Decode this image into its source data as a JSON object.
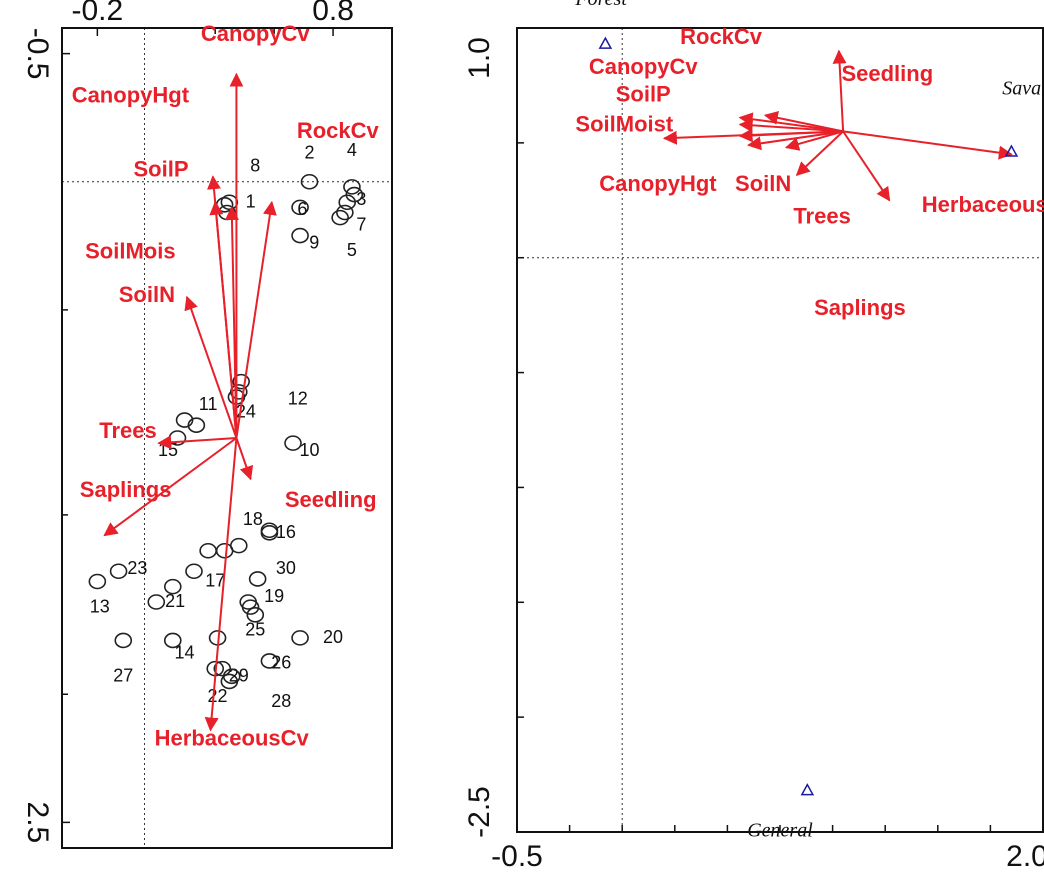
{
  "chart_data": [
    {
      "type": "scatter",
      "title": "",
      "xlabel": "",
      "ylabel": "",
      "x_tick_labels": [
        "-0.2",
        "0.8"
      ],
      "y_tick_labels": [
        "-0.5",
        "2.5"
      ],
      "xlim": [
        -0.35,
        1.05
      ],
      "ylim": [
        -0.6,
        2.6
      ],
      "y_inverted": true,
      "reference_lines": {
        "x": 0,
        "y": 0
      },
      "colors": {
        "arrows": "#e8202a",
        "sites": "#222222"
      },
      "arrows": [
        {
          "label": "CanopyCv",
          "x": 0.39,
          "y": -0.42,
          "label_x": 0.47,
          "label_y": -0.55
        },
        {
          "label": "CanopyHgt",
          "x": 0.29,
          "y": -0.02,
          "label_x": -0.06,
          "label_y": -0.31
        },
        {
          "label": "SoilP",
          "x": 0.3,
          "y": 0.08,
          "label_x": 0.07,
          "label_y": -0.02
        },
        {
          "label": "RockCv",
          "x": 0.54,
          "y": 0.08,
          "label_x": 0.82,
          "label_y": -0.17
        },
        {
          "label": "SoilMois",
          "x": 0.37,
          "y": 0.1,
          "label_x": -0.06,
          "label_y": 0.3
        },
        {
          "label": "SoilN",
          "x": 0.18,
          "y": 0.45,
          "label_x": 0.01,
          "label_y": 0.47
        },
        {
          "label": "Trees",
          "x": 0.06,
          "y": 1.02,
          "label_x": -0.07,
          "label_y": 1.0
        },
        {
          "label": "Saplings",
          "x": -0.17,
          "y": 1.38,
          "label_x": -0.08,
          "label_y": 1.23
        },
        {
          "label": "Seedling",
          "x": 0.45,
          "y": 1.16,
          "label_x": 0.79,
          "label_y": 1.27
        },
        {
          "label": "HerbaceousCv",
          "x": 0.28,
          "y": 2.14,
          "label_x": 0.37,
          "label_y": 2.2
        }
      ],
      "arrow_origin": {
        "x": 0.39,
        "y": 1.0
      },
      "sites": [
        {
          "id": "1",
          "x": 0.34,
          "y": 0.09,
          "label_x": 0.45,
          "label_y": 0.1
        },
        {
          "id": "2",
          "x": 0.7,
          "y": 0.0,
          "label_x": 0.7,
          "label_y": -0.09
        },
        {
          "id": "3",
          "x": 0.86,
          "y": 0.08,
          "label_x": 0.92,
          "label_y": 0.09
        },
        {
          "id": "4",
          "x": 0.88,
          "y": 0.02,
          "label_x": 0.88,
          "label_y": -0.1
        },
        {
          "id": "5",
          "x": 0.85,
          "y": 0.12,
          "label_x": 0.88,
          "label_y": 0.29
        },
        {
          "id": "6",
          "x": 0.66,
          "y": 0.1,
          "label_x": 0.67,
          "label_y": 0.13
        },
        {
          "id": "7",
          "x": 0.83,
          "y": 0.14,
          "label_x": 0.92,
          "label_y": 0.19
        },
        {
          "id": "8",
          "x": 0.36,
          "y": 0.08,
          "label_x": 0.47,
          "label_y": -0.04
        },
        {
          "id": "9",
          "x": 0.66,
          "y": 0.21,
          "label_x": 0.72,
          "label_y": 0.26
        },
        {
          "id": "10",
          "x": 0.63,
          "y": 1.02,
          "label_x": 0.7,
          "label_y": 1.07
        },
        {
          "id": "11",
          "x": 0.17,
          "y": 0.93,
          "label_x": 0.27,
          "label_y": 0.89
        },
        {
          "id": "12",
          "x": 0.41,
          "y": 0.78,
          "label_x": 0.65,
          "label_y": 0.87
        },
        {
          "id": "13",
          "x": -0.2,
          "y": 1.56,
          "label_x": -0.19,
          "label_y": 1.68
        },
        {
          "id": "14",
          "x": 0.31,
          "y": 1.78,
          "label_x": 0.17,
          "label_y": 1.86
        },
        {
          "id": "15",
          "x": 0.14,
          "y": 1.0,
          "label_x": 0.1,
          "label_y": 1.07
        },
        {
          "id": "16",
          "x": 0.53,
          "y": 1.36,
          "label_x": 0.6,
          "label_y": 1.39
        },
        {
          "id": "17",
          "x": 0.27,
          "y": 1.44,
          "label_x": 0.3,
          "label_y": 1.58
        },
        {
          "id": "18",
          "x": 0.4,
          "y": 1.42,
          "label_x": 0.46,
          "label_y": 1.34
        },
        {
          "id": "19",
          "x": 0.44,
          "y": 1.64,
          "label_x": 0.55,
          "label_y": 1.64
        },
        {
          "id": "20",
          "x": 0.66,
          "y": 1.78,
          "label_x": 0.8,
          "label_y": 1.8
        },
        {
          "id": "21",
          "x": 0.05,
          "y": 1.64,
          "label_x": 0.13,
          "label_y": 1.66
        },
        {
          "id": "22",
          "x": 0.3,
          "y": 1.9,
          "label_x": 0.31,
          "label_y": 2.03
        },
        {
          "id": "23",
          "x": -0.11,
          "y": 1.52,
          "label_x": -0.03,
          "label_y": 1.53
        },
        {
          "id": "24",
          "x": 0.39,
          "y": 0.84,
          "label_x": 0.43,
          "label_y": 0.92
        },
        {
          "id": "25",
          "x": 0.47,
          "y": 1.69,
          "label_x": 0.47,
          "label_y": 1.77
        },
        {
          "id": "26",
          "x": 0.53,
          "y": 1.87,
          "label_x": 0.58,
          "label_y": 1.9
        },
        {
          "id": "27",
          "x": -0.09,
          "y": 1.79,
          "label_x": -0.09,
          "label_y": 1.95
        },
        {
          "id": "28",
          "x": 0.36,
          "y": 1.95,
          "label_x": 0.58,
          "label_y": 2.05
        },
        {
          "id": "29",
          "x": 0.33,
          "y": 1.9,
          "label_x": 0.4,
          "label_y": 1.95
        },
        {
          "id": "30",
          "x": 0.48,
          "y": 1.55,
          "label_x": 0.6,
          "label_y": 1.53
        },
        {
          "id": "",
          "x": 0.35,
          "y": 0.12,
          "label_x": 0,
          "label_y": 0
        },
        {
          "id": "",
          "x": 0.4,
          "y": 0.82,
          "label_x": 0,
          "label_y": 0
        },
        {
          "id": "",
          "x": 0.34,
          "y": 1.44,
          "label_x": 0,
          "label_y": 0
        },
        {
          "id": "",
          "x": 0.12,
          "y": 1.58,
          "label_x": 0,
          "label_y": 0
        },
        {
          "id": "",
          "x": 0.21,
          "y": 1.52,
          "label_x": 0,
          "label_y": 0
        },
        {
          "id": "",
          "x": 0.45,
          "y": 1.66,
          "label_x": 0,
          "label_y": 0
        },
        {
          "id": "",
          "x": 0.53,
          "y": 1.37,
          "label_x": 0,
          "label_y": 0
        },
        {
          "id": "",
          "x": 0.12,
          "y": 1.79,
          "label_x": 0,
          "label_y": 0
        },
        {
          "id": "",
          "x": 0.37,
          "y": 1.93,
          "label_x": 0,
          "label_y": 0
        },
        {
          "id": "",
          "x": 0.89,
          "y": 0.05,
          "label_x": 0,
          "label_y": 0
        },
        {
          "id": "",
          "x": 0.22,
          "y": 0.95,
          "label_x": 0,
          "label_y": 0
        }
      ]
    },
    {
      "type": "scatter",
      "title": "",
      "xlabel": "",
      "ylabel": "",
      "x_tick_labels": [
        "-0.5",
        "2.0"
      ],
      "y_tick_labels": [
        "1.0",
        "-2.5"
      ],
      "xlim": [
        -0.5,
        2.0
      ],
      "ylim": [
        -2.5,
        1.0
      ],
      "reference_lines": {
        "x": 0,
        "y": 0
      },
      "colors": {
        "arrows": "#e8202a",
        "centroids": "#1a1aa0"
      },
      "arrow_origin": {
        "x": 1.05,
        "y": 0.55
      },
      "arrows": [
        {
          "label": "RockCv",
          "x": 0.68,
          "y": 0.62,
          "label_x": 0.47,
          "label_y": 0.93
        },
        {
          "label": "CanopyCv",
          "x": 0.56,
          "y": 0.61,
          "label_x": 0.1,
          "label_y": 0.8
        },
        {
          "label": "SoilP",
          "x": 0.56,
          "y": 0.58,
          "label_x": 0.1,
          "label_y": 0.68
        },
        {
          "label": "SoilMoist",
          "x": 0.2,
          "y": 0.52,
          "label_x": 0.01,
          "label_y": 0.55
        },
        {
          "label": "CanopyHgt",
          "x": 0.56,
          "y": 0.53,
          "label_x": 0.17,
          "label_y": 0.29
        },
        {
          "label": "SoilN",
          "x": 0.6,
          "y": 0.49,
          "label_x": 0.67,
          "label_y": 0.29
        },
        {
          "label": "Trees",
          "x": 0.83,
          "y": 0.36,
          "label_x": 0.95,
          "label_y": 0.15
        },
        {
          "label": "HerbaceousCv",
          "x": 1.27,
          "y": 0.25,
          "label_x": 1.79,
          "label_y": 0.2
        },
        {
          "label": "Seedling",
          "x": 1.03,
          "y": 0.9,
          "label_x": 1.26,
          "label_y": 0.77
        },
        {
          "label": "Saplings",
          "x": 0.78,
          "y": 0.48,
          "label_x": 1.13,
          "label_y": -0.25
        },
        {
          "label": "Savanna",
          "x": 1.85,
          "y": 0.45,
          "label_x": 0,
          "label_y": 0
        }
      ],
      "centroids": [
        {
          "label": "Forest",
          "x": -0.08,
          "y": 0.93,
          "label_x": -0.1,
          "label_y": 1.1
        },
        {
          "label": "Savanna",
          "x": 1.85,
          "y": 0.46,
          "label_x": 1.97,
          "label_y": 0.71
        },
        {
          "label": "General",
          "x": 0.88,
          "y": -2.32,
          "label_x": 0.75,
          "label_y": -2.52
        }
      ]
    }
  ]
}
